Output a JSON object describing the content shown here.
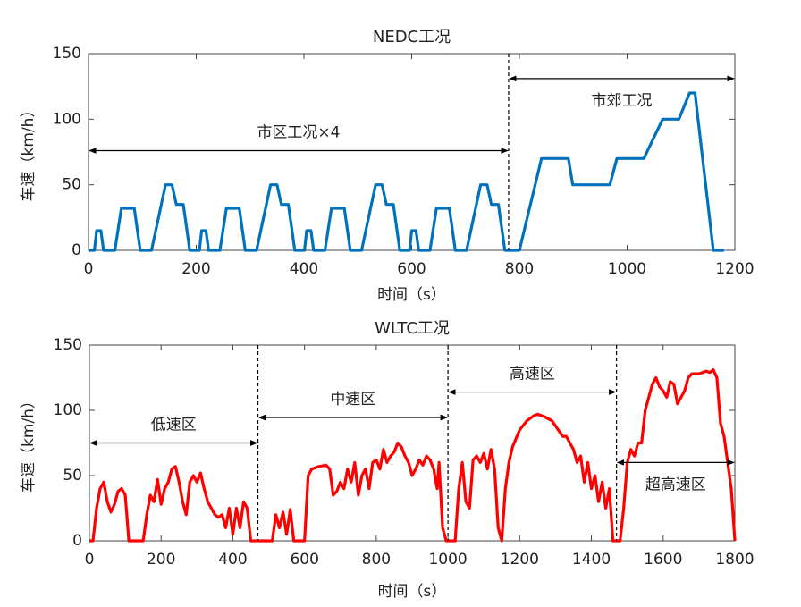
{
  "chart_data": [
    {
      "type": "line",
      "title": "NEDC工况",
      "xlabel": "时间（s）",
      "ylabel": "车速（km/h）",
      "xlim": [
        0,
        1200
      ],
      "ylim": [
        0,
        150
      ],
      "xticks": [
        0,
        200,
        400,
        600,
        800,
        1000,
        1200
      ],
      "yticks": [
        0,
        50,
        100,
        150
      ],
      "series": [
        {
          "name": "NEDC",
          "color": "#0072bd",
          "x": [
            0,
            11,
            15,
            23,
            28,
            49,
            61,
            85,
            96,
            117,
            143,
            155,
            163,
            176,
            188,
            195,
            206,
            210,
            218,
            223,
            244,
            256,
            280,
            291,
            312,
            338,
            350,
            358,
            371,
            383,
            390,
            401,
            405,
            413,
            418,
            439,
            451,
            475,
            486,
            507,
            533,
            545,
            553,
            566,
            578,
            585,
            596,
            600,
            608,
            613,
            634,
            646,
            670,
            681,
            702,
            728,
            740,
            748,
            761,
            773,
            780,
            800,
            841,
            891,
            899,
            968,
            981,
            1031,
            1066,
            1096,
            1116,
            1126,
            1160,
            1180
          ],
          "values": [
            0,
            0,
            15,
            15,
            0,
            0,
            32,
            32,
            0,
            0,
            50,
            50,
            35,
            35,
            0,
            0,
            0,
            15,
            15,
            0,
            0,
            32,
            32,
            0,
            0,
            50,
            50,
            35,
            35,
            0,
            0,
            0,
            15,
            15,
            0,
            0,
            32,
            32,
            0,
            0,
            50,
            50,
            35,
            35,
            0,
            0,
            0,
            15,
            15,
            0,
            0,
            32,
            32,
            0,
            0,
            50,
            50,
            35,
            35,
            0,
            0,
            0,
            70,
            70,
            50,
            50,
            70,
            70,
            100,
            100,
            120,
            120,
            0,
            0
          ]
        }
      ],
      "vlines": [
        780
      ],
      "annotations": [
        {
          "text": "市区工况×4",
          "x": [
            0,
            780
          ],
          "y": 76,
          "label_side": "above"
        },
        {
          "text": "市郊工况",
          "x": [
            780,
            1200
          ],
          "y": 131,
          "label_side": "below"
        }
      ]
    },
    {
      "type": "line",
      "title": "WLTC工况",
      "xlabel": "时间（s）",
      "ylabel": "车速（km/h）",
      "xlim": [
        0,
        1800
      ],
      "ylim": [
        0,
        150
      ],
      "xticks": [
        0,
        200,
        400,
        600,
        800,
        1000,
        1200,
        1400,
        1600,
        1800
      ],
      "yticks": [
        0,
        50,
        100,
        150
      ],
      "series": [
        {
          "name": "WLTC",
          "color": "#ff0000",
          "x": [
            0,
            10,
            20,
            30,
            40,
            50,
            60,
            70,
            80,
            90,
            100,
            110,
            120,
            150,
            160,
            170,
            180,
            190,
            200,
            210,
            220,
            230,
            240,
            250,
            260,
            270,
            280,
            290,
            300,
            310,
            320,
            330,
            340,
            350,
            360,
            370,
            380,
            390,
            400,
            410,
            420,
            430,
            440,
            450,
            470,
            490,
            510,
            520,
            530,
            540,
            550,
            560,
            570,
            600,
            610,
            620,
            640,
            660,
            670,
            680,
            690,
            700,
            710,
            720,
            730,
            740,
            750,
            760,
            770,
            780,
            790,
            800,
            810,
            820,
            830,
            840,
            850,
            860,
            870,
            880,
            890,
            900,
            910,
            920,
            930,
            940,
            950,
            960,
            970,
            975,
            985,
            995,
            1000,
            1020,
            1030,
            1040,
            1050,
            1060,
            1070,
            1080,
            1090,
            1100,
            1110,
            1120,
            1130,
            1140,
            1150,
            1160,
            1170,
            1180,
            1200,
            1220,
            1240,
            1250,
            1270,
            1290,
            1300,
            1320,
            1330,
            1340,
            1350,
            1360,
            1370,
            1380,
            1390,
            1400,
            1410,
            1420,
            1430,
            1440,
            1450,
            1460,
            1470,
            1480,
            1490,
            1500,
            1510,
            1520,
            1530,
            1540,
            1550,
            1560,
            1570,
            1580,
            1590,
            1600,
            1610,
            1620,
            1630,
            1640,
            1650,
            1660,
            1670,
            1680,
            1700,
            1720,
            1730,
            1740,
            1750,
            1760,
            1770,
            1780,
            1790,
            1800
          ],
          "values": [
            0,
            0,
            25,
            40,
            45,
            30,
            22,
            28,
            38,
            40,
            35,
            0,
            0,
            0,
            20,
            35,
            30,
            47,
            28,
            40,
            45,
            55,
            57,
            45,
            30,
            20,
            45,
            50,
            45,
            52,
            40,
            30,
            25,
            20,
            18,
            20,
            10,
            25,
            5,
            25,
            10,
            30,
            25,
            0,
            0,
            0,
            0,
            20,
            10,
            22,
            5,
            24,
            0,
            0,
            50,
            55,
            57,
            58,
            55,
            35,
            38,
            45,
            40,
            55,
            45,
            60,
            35,
            50,
            55,
            40,
            60,
            62,
            55,
            70,
            60,
            65,
            68,
            75,
            72,
            65,
            60,
            50,
            55,
            62,
            58,
            65,
            62,
            55,
            40,
            60,
            10,
            0,
            0,
            0,
            40,
            60,
            30,
            25,
            62,
            65,
            60,
            67,
            55,
            70,
            55,
            10,
            0,
            40,
            60,
            72,
            85,
            92,
            96,
            97,
            95,
            92,
            88,
            80,
            80,
            75,
            70,
            60,
            65,
            45,
            60,
            40,
            50,
            30,
            45,
            25,
            40,
            0,
            0,
            0,
            25,
            60,
            70,
            65,
            75,
            75,
            100,
            110,
            120,
            125,
            118,
            115,
            110,
            122,
            120,
            105,
            110,
            115,
            125,
            128,
            128,
            130,
            129,
            131,
            125,
            90,
            80,
            60,
            40,
            0
          ]
        }
      ],
      "vlines": [
        470,
        1000,
        1470
      ],
      "annotations": [
        {
          "text": "低速区",
          "x": [
            0,
            470
          ],
          "y": 75,
          "label_side": "above"
        },
        {
          "text": "中速区",
          "x": [
            470,
            1000
          ],
          "y": 94.5,
          "label_side": "above"
        },
        {
          "text": "高速区",
          "x": [
            1000,
            1470
          ],
          "y": 114,
          "label_side": "above"
        },
        {
          "text": "超高速区",
          "x": [
            1470,
            1800
          ],
          "y": 60,
          "label_side": "below"
        }
      ]
    }
  ]
}
